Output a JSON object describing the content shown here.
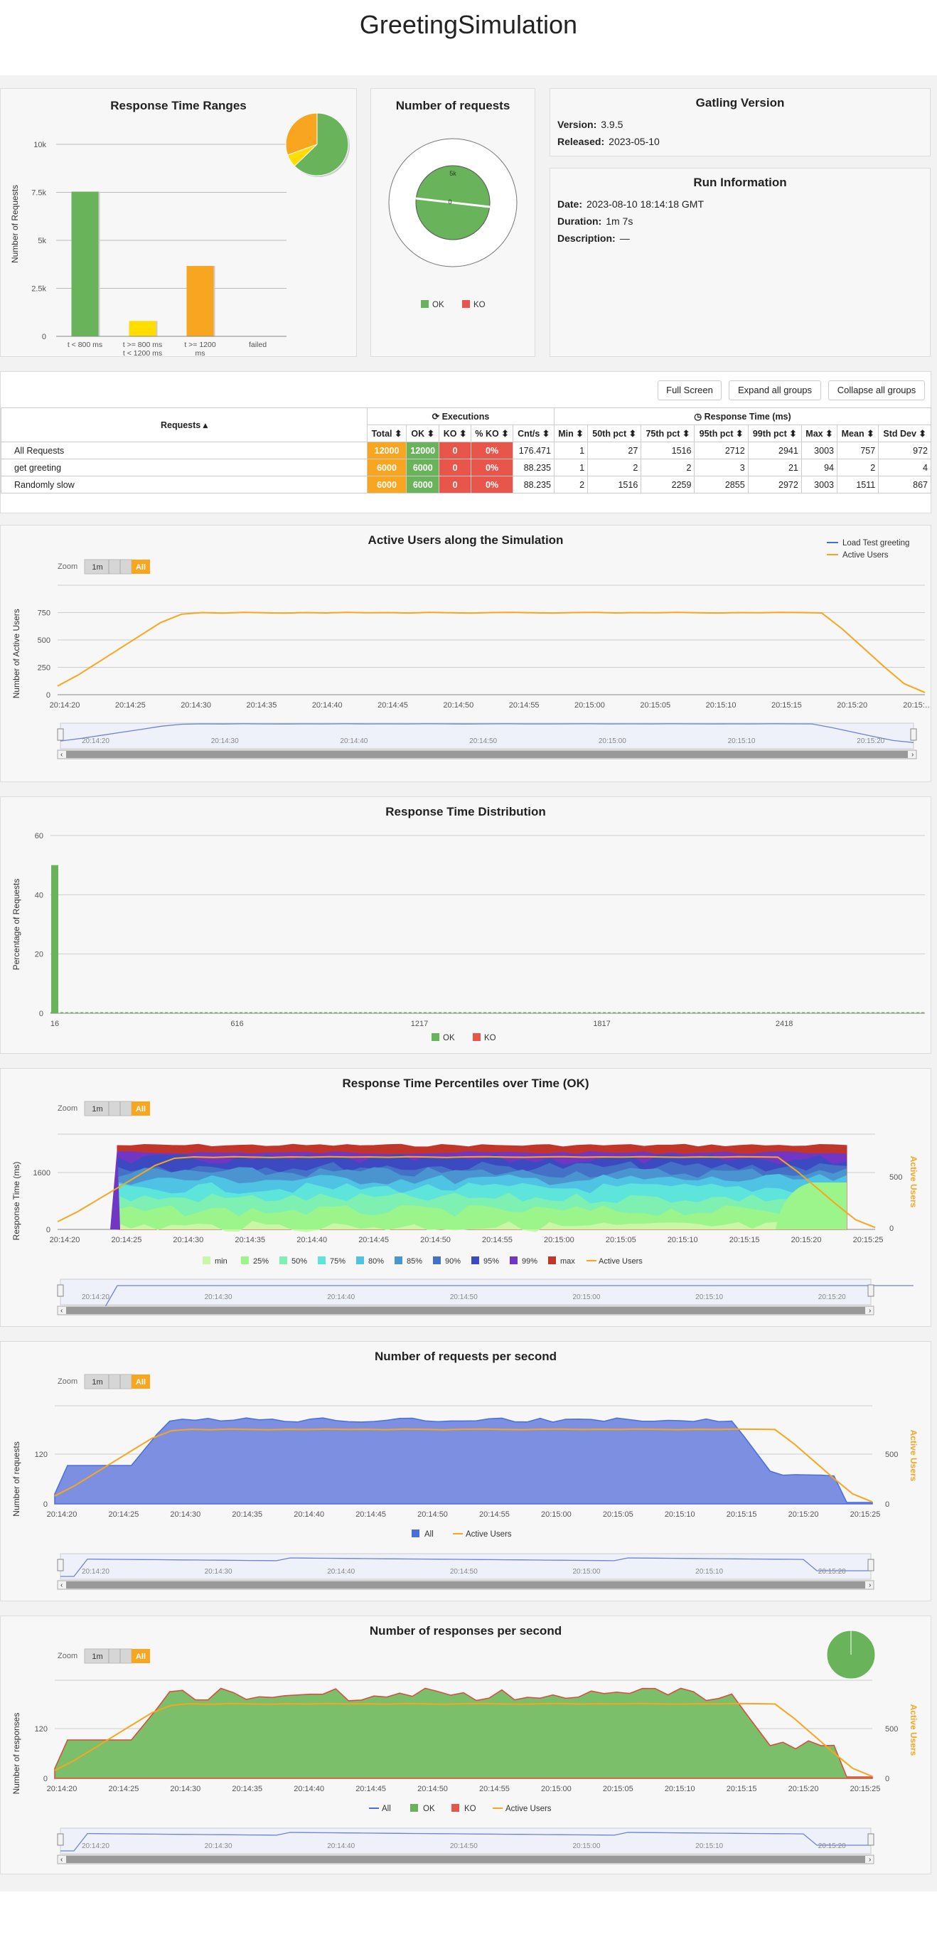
{
  "page": {
    "title": "GreetingSimulation"
  },
  "response_time_ranges": {
    "title": "Response Time Ranges",
    "ylabel": "Number of Requests",
    "yticks": [
      "10k",
      "7.5k",
      "5k",
      "2.5k",
      "0"
    ],
    "categories": [
      "t < 800 ms",
      "t >= 800 ms\nt < 1200 ms",
      "t >= 1200\nms",
      "failed"
    ],
    "cat_lines": [
      [
        "t < 800 ms"
      ],
      [
        "t >= 800 ms",
        "t < 1200 ms"
      ],
      [
        "t >= 1200",
        "ms"
      ],
      [
        "failed"
      ]
    ],
    "values": [
      7536,
      799,
      3665,
      0
    ],
    "colors": [
      "#69b35b",
      "#ffdd00",
      "#f8a51f",
      "#e8564b"
    ]
  },
  "number_of_requests": {
    "title": "Number of requests",
    "ok": 12000,
    "ko": 0,
    "ticks": [
      "5k",
      "0"
    ],
    "legend": [
      {
        "label": "OK",
        "color": "#69b35b"
      },
      {
        "label": "KO",
        "color": "#e8564b"
      }
    ]
  },
  "gatling_version": {
    "title": "Gatling Version",
    "version_label": "Version:",
    "version": "3.9.5",
    "released_label": "Released:",
    "released": "2023-05-10"
  },
  "run_information": {
    "title": "Run Information",
    "date_label": "Date:",
    "date": "2023-08-10 18:14:18 GMT",
    "duration_label": "Duration:",
    "duration": "1m 7s",
    "description_label": "Description:",
    "description": "—"
  },
  "stats_table": {
    "buttons": {
      "full_screen": "Full Screen",
      "expand": "Expand all groups",
      "collapse": "Collapse all groups"
    },
    "group_executions": "Executions",
    "group_response_time": "Response Time (ms)",
    "requests_header": "Requests ▴",
    "columns": [
      "Total ⬍",
      "OK ⬍",
      "KO ⬍",
      "% KO ⬍",
      "Cnt/s ⬍",
      "Min ⬍",
      "50th pct ⬍",
      "75th pct ⬍",
      "95th pct ⬍",
      "99th pct ⬍",
      "Max ⬍",
      "Mean ⬍",
      "Std Dev ⬍"
    ],
    "rows": [
      {
        "name": "All Requests",
        "total": "12000",
        "ok": "12000",
        "ko": "0",
        "pko": "0%",
        "cnt": "176.471",
        "min": "1",
        "p50": "27",
        "p75": "1516",
        "p95": "2712",
        "p99": "2941",
        "max": "3003",
        "mean": "757",
        "std": "972"
      },
      {
        "name": "get greeting",
        "total": "6000",
        "ok": "6000",
        "ko": "0",
        "pko": "0%",
        "cnt": "88.235",
        "min": "1",
        "p50": "2",
        "p75": "2",
        "p95": "3",
        "p99": "21",
        "max": "94",
        "mean": "2",
        "std": "4"
      },
      {
        "name": "Randomly slow",
        "total": "6000",
        "ok": "6000",
        "ko": "0",
        "pko": "0%",
        "cnt": "88.235",
        "min": "2",
        "p50": "1516",
        "p75": "2259",
        "p95": "2855",
        "p99": "2972",
        "max": "3003",
        "mean": "1511",
        "std": "867"
      }
    ]
  },
  "zoom": {
    "label": "Zoom",
    "one_min": "1m",
    "all": "All"
  },
  "x_times_full": [
    "20:14:20",
    "20:14:25",
    "20:14:30",
    "20:14:35",
    "20:14:40",
    "20:14:45",
    "20:14:50",
    "20:14:55",
    "20:15:00",
    "20:15:05",
    "20:15:10",
    "20:15:15",
    "20:15:20",
    "20:15:25"
  ],
  "nav_times": [
    "20:14:20",
    "20:14:30",
    "20:14:40",
    "20:14:50",
    "20:15:00",
    "20:15:10",
    "20:15:20"
  ],
  "chart_data": [
    {
      "type": "line",
      "title": "Active Users along the Simulation",
      "ylabel": "Number of Active Users",
      "yticks": [
        750,
        500,
        250,
        0
      ],
      "ylim": [
        0,
        1000
      ],
      "x_last_label": "20:15:…",
      "legend": [
        {
          "label": "Load Test greeting",
          "color": "#4572c4"
        },
        {
          "label": "Active Users",
          "color": "#f8a51f"
        }
      ],
      "series": [
        {
          "name": "Active Users",
          "values": [
            80,
            180,
            300,
            420,
            540,
            660,
            735,
            750,
            745,
            752,
            748,
            745,
            750,
            747,
            752,
            748,
            750,
            746,
            752,
            749,
            745,
            750,
            752,
            748,
            746,
            750,
            752,
            747,
            750,
            748,
            752,
            749,
            746,
            750,
            748,
            752,
            750,
            747,
            600,
            430,
            260,
            100,
            20
          ]
        }
      ]
    },
    {
      "type": "bar",
      "title": "Response Time Distribution",
      "ylabel": "Percentage of Requests",
      "yticks": [
        60,
        40,
        20,
        0
      ],
      "ylim": [
        0,
        60
      ],
      "xticks": [
        "16",
        "616",
        "1217",
        "1817",
        "2418"
      ],
      "legend": [
        {
          "label": "OK",
          "color": "#69b35b"
        },
        {
          "label": "KO",
          "color": "#e8564b"
        }
      ],
      "series": [
        {
          "name": "OK",
          "values": [
            50
          ]
        }
      ]
    },
    {
      "type": "area",
      "title": "Response Time Percentiles over Time (OK)",
      "ylabel": "Response Time (ms)",
      "y2label": "Active Users",
      "yticks": [
        1600,
        0
      ],
      "y2ticks": [
        500,
        0
      ],
      "legend": [
        {
          "label": "min",
          "color": "#c9f7a6"
        },
        {
          "label": "25%",
          "color": "#9bf58a"
        },
        {
          "label": "50%",
          "color": "#7ef1b2"
        },
        {
          "label": "75%",
          "color": "#5de5dc"
        },
        {
          "label": "80%",
          "color": "#4fc3e3"
        },
        {
          "label": "85%",
          "color": "#4a95d0"
        },
        {
          "label": "90%",
          "color": "#4271c6"
        },
        {
          "label": "95%",
          "color": "#3c4ac2"
        },
        {
          "label": "99%",
          "color": "#7136c4"
        },
        {
          "label": "max",
          "color": "#c2352a"
        },
        {
          "label": "Active Users",
          "color": "#f8a51f"
        }
      ]
    },
    {
      "type": "area",
      "title": "Number of requests per second",
      "ylabel": "Number of requests",
      "y2label": "Active Users",
      "yticks": [
        120,
        0
      ],
      "y2ticks": [
        500,
        0
      ],
      "legend": [
        {
          "label": "All",
          "color": "#4a6fdc"
        },
        {
          "label": "Active Users",
          "color": "#f8a51f"
        }
      ]
    },
    {
      "type": "area",
      "title": "Number of responses per second",
      "ylabel": "Number of responses",
      "y2label": "Active Users",
      "yticks": [
        120,
        0
      ],
      "y2ticks": [
        500,
        0
      ],
      "legend": [
        {
          "label": "All",
          "color": "#4a6fdc"
        },
        {
          "label": "OK",
          "color": "#69b35b"
        },
        {
          "label": "KO",
          "color": "#e8564b"
        },
        {
          "label": "Active Users",
          "color": "#f8a51f"
        }
      ]
    }
  ]
}
